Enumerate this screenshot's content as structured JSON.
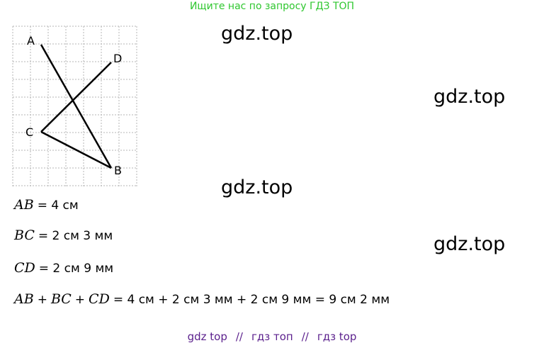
{
  "header": "Ищите нас по запросу ГДЗ ТОП",
  "figure": {
    "points": [
      "A",
      "D",
      "C",
      "B"
    ]
  },
  "watermarks": [
    "gdz.top",
    "gdz.top",
    "gdz.top",
    "gdz.top"
  ],
  "equations": [
    [
      "AB",
      "= 4 см"
    ],
    [
      "BC",
      "= 2 см 3 мм"
    ],
    [
      "CD",
      "= 2 см 9 мм"
    ],
    [
      "AB",
      "+",
      "BC",
      "+",
      "CD",
      "= 4 см + 2 см 3 мм + 2 см 9 мм = 9 см 2 мм"
    ]
  ],
  "footer": [
    "gdz top",
    "//",
    "гдз топ",
    "//",
    "гдз top"
  ]
}
